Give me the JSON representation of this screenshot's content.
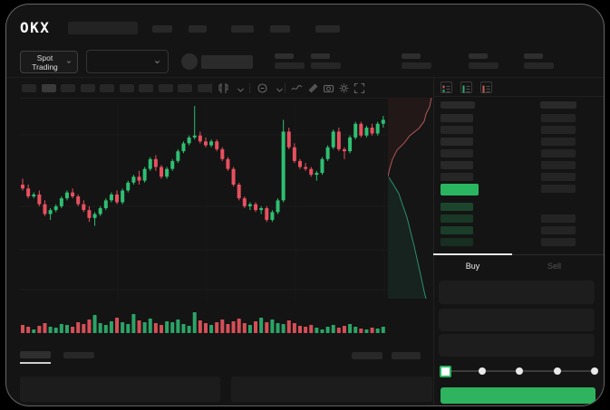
{
  "app": {
    "logo_text": "OKX"
  },
  "market_toolbar": {
    "market_selector_label": "Spot Trading"
  },
  "chart_toolbar": {
    "timeframe_slots": 10,
    "active_slot": 1,
    "icons": [
      "candlestick-style-icon",
      "chevron-down-icon",
      "indicators-icon",
      "chevron-down-icon",
      "line-tools-icon",
      "measure-icon",
      "camera-icon",
      "settings-gear-icon",
      "fullscreen-icon"
    ]
  },
  "order_book": {
    "view_icons": [
      "book-combined-icon",
      "book-bids-icon",
      "book-asks-icon"
    ],
    "ask_rows": 6,
    "ask_amount_rows": 7,
    "bid_rows": 4,
    "bid_amount_rows": 3,
    "bid_row_alphas": [
      0.3,
      0.22,
      0.26,
      0.16
    ]
  },
  "trade_panel": {
    "buy_tab_label": "Buy",
    "sell_tab_label": "Sell",
    "slider_stops": 5,
    "slider_active_stop": 0
  },
  "colors": {
    "up": "#2fbf71",
    "down": "#e8505f",
    "vol_up": "#2ca467",
    "vol_down": "#d44f57",
    "last_price": "#2ab561",
    "buy_button": "#2eb35f",
    "ask_line": "#b05757",
    "ask_fill": "rgba(170,60,60,0.10)",
    "bid_line": "#2c8f70",
    "bid_fill": "rgba(40,140,100,0.12)"
  },
  "chart_data": {
    "type": "candlestick",
    "title": "",
    "price_scale": [
      0,
      100
    ],
    "grid": true,
    "candles": [
      [
        59,
        62,
        56,
        57
      ],
      [
        57,
        59,
        52,
        53
      ],
      [
        53,
        55,
        52,
        54
      ],
      [
        54,
        56,
        48,
        49
      ],
      [
        49,
        51,
        43,
        44
      ],
      [
        44,
        47,
        41,
        46
      ],
      [
        46,
        49,
        45,
        48
      ],
      [
        48,
        53,
        47,
        52
      ],
      [
        52,
        56,
        51,
        55
      ],
      [
        55,
        57,
        52,
        53
      ],
      [
        53,
        54,
        48,
        49
      ],
      [
        49,
        51,
        45,
        46
      ],
      [
        46,
        48,
        40,
        42
      ],
      [
        42,
        45,
        38,
        44
      ],
      [
        44,
        48,
        43,
        47
      ],
      [
        47,
        52,
        46,
        51
      ],
      [
        51,
        55,
        50,
        54
      ],
      [
        54,
        56,
        49,
        50
      ],
      [
        50,
        57,
        49,
        56
      ],
      [
        56,
        61,
        55,
        60
      ],
      [
        60,
        64,
        59,
        63
      ],
      [
        63,
        66,
        59,
        61
      ],
      [
        61,
        68,
        60,
        67
      ],
      [
        67,
        73,
        66,
        72
      ],
      [
        72,
        74,
        66,
        68
      ],
      [
        68,
        69,
        62,
        63
      ],
      [
        63,
        68,
        62,
        67
      ],
      [
        67,
        72,
        66,
        71
      ],
      [
        71,
        77,
        70,
        76
      ],
      [
        76,
        81,
        75,
        80
      ],
      [
        80,
        84,
        79,
        83
      ],
      [
        83,
        99,
        82,
        84
      ],
      [
        84,
        86,
        80,
        81
      ],
      [
        81,
        83,
        78,
        79
      ],
      [
        79,
        82,
        78,
        81
      ],
      [
        81,
        82,
        76,
        77
      ],
      [
        77,
        78,
        71,
        72
      ],
      [
        72,
        73,
        66,
        67
      ],
      [
        67,
        68,
        58,
        59
      ],
      [
        59,
        60,
        51,
        52
      ],
      [
        52,
        53,
        47,
        48
      ],
      [
        48,
        50,
        46,
        49
      ],
      [
        49,
        50,
        45,
        46
      ],
      [
        46,
        48,
        44,
        47
      ],
      [
        47,
        48,
        40,
        41
      ],
      [
        41,
        46,
        40,
        45
      ],
      [
        45,
        52,
        44,
        51
      ],
      [
        51,
        92,
        50,
        86
      ],
      [
        86,
        88,
        77,
        78
      ],
      [
        78,
        80,
        70,
        71
      ],
      [
        71,
        72,
        67,
        68
      ],
      [
        68,
        70,
        66,
        67
      ],
      [
        67,
        68,
        63,
        64
      ],
      [
        64,
        66,
        61,
        65
      ],
      [
        65,
        73,
        64,
        72
      ],
      [
        72,
        79,
        71,
        78
      ],
      [
        78,
        87,
        77,
        86
      ],
      [
        86,
        88,
        76,
        77
      ],
      [
        77,
        78,
        72,
        76
      ],
      [
        76,
        84,
        75,
        83
      ],
      [
        83,
        91,
        82,
        90
      ],
      [
        90,
        91,
        83,
        84
      ],
      [
        84,
        89,
        83,
        88
      ],
      [
        88,
        90,
        84,
        85
      ],
      [
        85,
        91,
        84,
        90
      ],
      [
        90,
        94,
        88,
        92
      ]
    ],
    "volumes": [
      9,
      7,
      4,
      8,
      11,
      7,
      6,
      10,
      9,
      7,
      12,
      10,
      15,
      20,
      11,
      9,
      13,
      17,
      12,
      10,
      21,
      14,
      12,
      16,
      11,
      9,
      13,
      12,
      15,
      10,
      8,
      23,
      14,
      11,
      9,
      12,
      15,
      10,
      13,
      16,
      11,
      9,
      13,
      17,
      12,
      15,
      11,
      10,
      14,
      11,
      8,
      7,
      9,
      6,
      4,
      7,
      9,
      6,
      8,
      10,
      7,
      5,
      4,
      6,
      5,
      7
    ],
    "depth": {
      "asks": [
        [
          0,
          0.96
        ],
        [
          0.045,
          0.92
        ],
        [
          0.081,
          0.84
        ],
        [
          0.117,
          0.8
        ],
        [
          0.153,
          0.68
        ],
        [
          0.189,
          0.48
        ],
        [
          0.225,
          0.36
        ],
        [
          0.261,
          0.2
        ],
        [
          0.306,
          0.1
        ],
        [
          0.351,
          0.04
        ],
        [
          0.392,
          0.0
        ]
      ],
      "bids": [
        [
          0.396,
          0.02
        ],
        [
          0.432,
          0.12
        ],
        [
          0.477,
          0.24
        ],
        [
          0.531,
          0.32
        ],
        [
          0.595,
          0.42
        ],
        [
          0.667,
          0.5
        ],
        [
          0.739,
          0.58
        ],
        [
          0.82,
          0.66
        ],
        [
          0.901,
          0.74
        ],
        [
          0.964,
          0.8
        ],
        [
          1.0,
          0.84
        ]
      ]
    }
  }
}
